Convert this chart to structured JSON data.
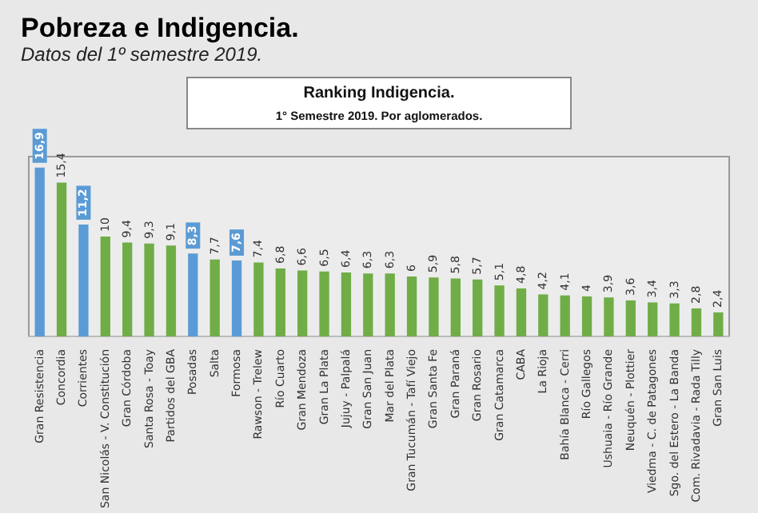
{
  "chart_data": {
    "type": "bar",
    "title": "Pobreza e Indigencia.",
    "subtitle": "Datos del 1º semestre 2019.",
    "annotations": [
      "Ranking Indigencia.",
      "1° Semestre 2019. Por aglomerados."
    ],
    "categories": [
      "Gran Resistencia",
      "Concordia",
      "Corrientes",
      "San Nicolás - V. Constitución",
      "Gran Córdoba",
      "Santa Rosa - Toay",
      "Partidos del GBA",
      "Posadas",
      "Salta",
      "Formosa",
      "Rawson - Trelew",
      "Río Cuarto",
      "Gran Mendoza",
      "Gran La Plata",
      "Jujuy - Palpalá",
      "Gran San Juan",
      "Mar del Plata",
      "Gran Tucumán - Tafí Viejo",
      "Gran Santa Fe",
      "Gran Paraná",
      "Gran Rosario",
      "Gran Catamarca",
      "CABA",
      "La Rioja",
      "Bahía Blanca - Cerri",
      "Río Gallegos",
      "Ushuaia - Río Grande",
      "Neuquén - Plottier",
      "Viedma - C. de Patagones",
      "Sgo. del Estero - La Banda",
      "Com. Rivadavia - Rada Tilly",
      "Gran San Luis"
    ],
    "values": [
      16.9,
      15.4,
      11.2,
      10,
      9.4,
      9.3,
      9.1,
      8.3,
      7.7,
      7.6,
      7.4,
      6.8,
      6.6,
      6.5,
      6.4,
      6.3,
      6.3,
      6,
      5.9,
      5.8,
      5.7,
      5.1,
      4.8,
      4.2,
      4.1,
      4,
      3.9,
      3.6,
      3.4,
      3.3,
      2.8,
      2.4
    ],
    "value_labels": [
      "16,9",
      "15,4",
      "11,2",
      "10",
      "9,4",
      "9,3",
      "9,1",
      "8,3",
      "7,7",
      "7,6",
      "7,4",
      "6,8",
      "6,6",
      "6,5",
      "6,4",
      "6,3",
      "6,3",
      "6",
      "5,9",
      "5,8",
      "5,7",
      "5,1",
      "4,8",
      "4,2",
      "4,1",
      "4",
      "3,9",
      "3,6",
      "3,4",
      "3,3",
      "2,8",
      "2,4"
    ],
    "colors": [
      "#5b9bd5",
      "#70ad47",
      "#5b9bd5",
      "#70ad47",
      "#70ad47",
      "#70ad47",
      "#70ad47",
      "#5b9bd5",
      "#70ad47",
      "#5b9bd5",
      "#70ad47",
      "#70ad47",
      "#70ad47",
      "#70ad47",
      "#70ad47",
      "#70ad47",
      "#70ad47",
      "#70ad47",
      "#70ad47",
      "#70ad47",
      "#70ad47",
      "#70ad47",
      "#70ad47",
      "#70ad47",
      "#70ad47",
      "#70ad47",
      "#70ad47",
      "#70ad47",
      "#70ad47",
      "#70ad47",
      "#70ad47",
      "#70ad47"
    ],
    "tick_labels": "x"
  }
}
